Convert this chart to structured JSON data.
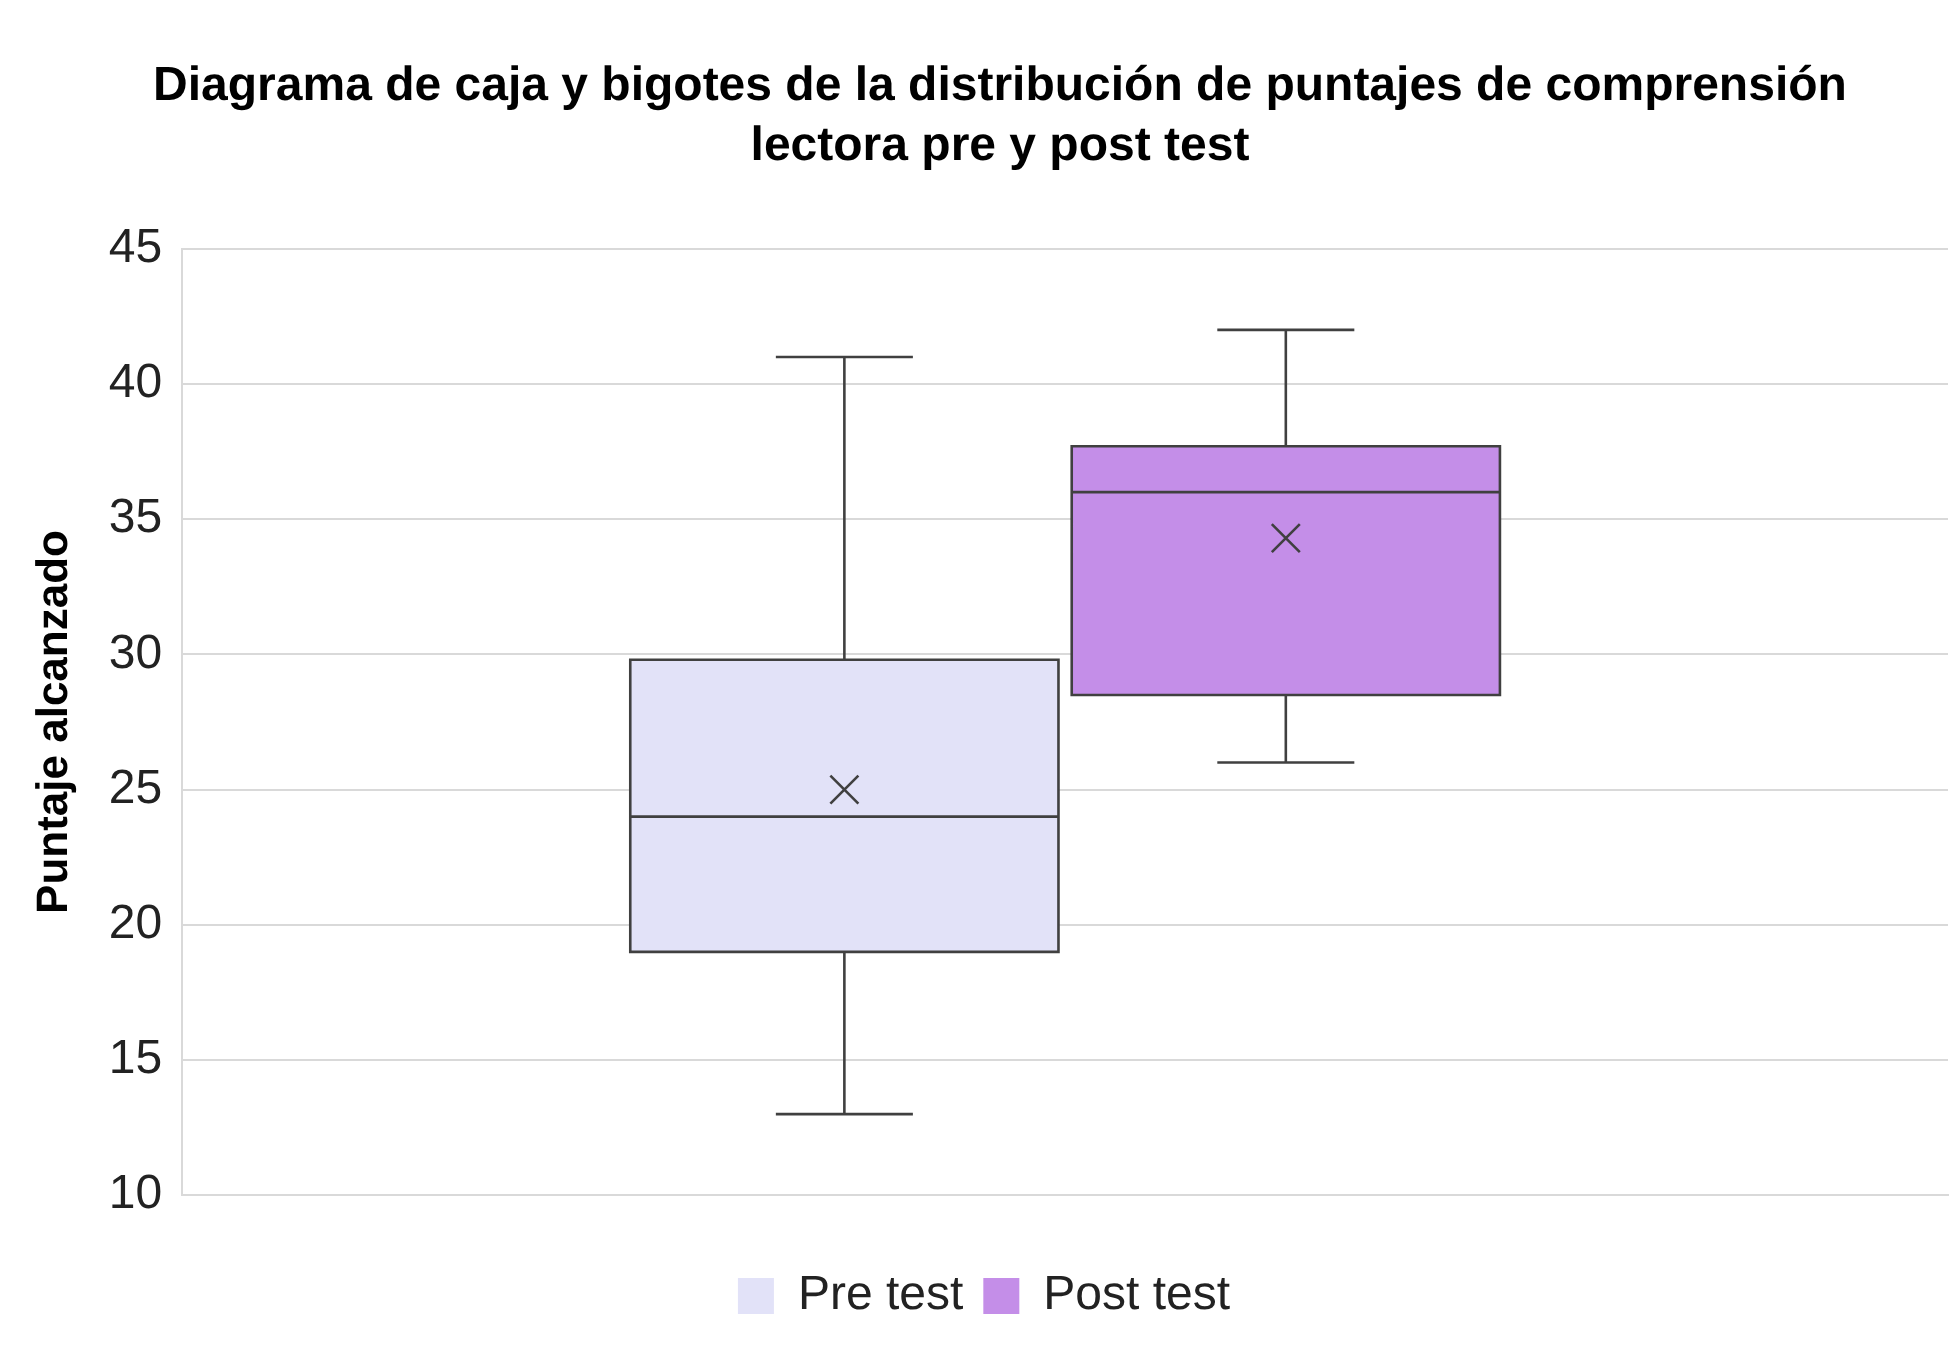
{
  "chart_data": {
    "type": "box",
    "title": "Diagrama de caja y bigotes de la distribución de puntajes de comprensión lectora pre y post test",
    "ylabel": "Puntaje alcanzado",
    "categories": [
      null
    ],
    "series": [
      {
        "name": "Pre test",
        "color": "#e2e2f8",
        "boxes": [
          {
            "low": 13,
            "q1": 19,
            "median": 24,
            "q3": 29.8,
            "high": 41,
            "mean": 25
          }
        ]
      },
      {
        "name": "Post test",
        "color": "#c48ee8",
        "boxes": [
          {
            "low": 26,
            "q1": 28.5,
            "median": 36,
            "q3": 37.7,
            "high": 42,
            "mean": 34.3
          }
        ]
      }
    ],
    "ylim": [
      10,
      45
    ],
    "yticks": [
      10,
      15,
      20,
      25,
      30,
      35,
      40,
      45
    ],
    "grid": "y",
    "legend": "bottom"
  }
}
